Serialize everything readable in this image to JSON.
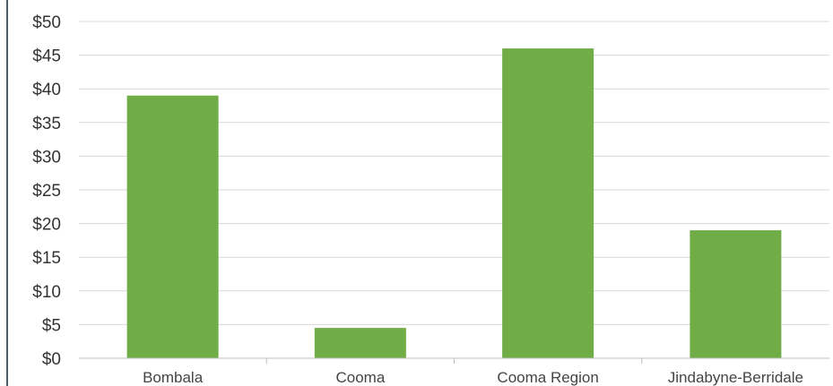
{
  "chart_data": {
    "type": "bar",
    "categories": [
      "Bombala",
      "Cooma",
      "Cooma Region",
      "Jindabyne-Berridale"
    ],
    "values": [
      39,
      4.5,
      46,
      19
    ],
    "ylim": [
      0,
      50
    ],
    "yticks": [
      "$0",
      "$5",
      "$10",
      "$15",
      "$20",
      "$25",
      "$30",
      "$35",
      "$40",
      "$45",
      "$50"
    ],
    "grid": true,
    "bar_color": "#70ad47",
    "grid_color": "#d9d9d9"
  }
}
